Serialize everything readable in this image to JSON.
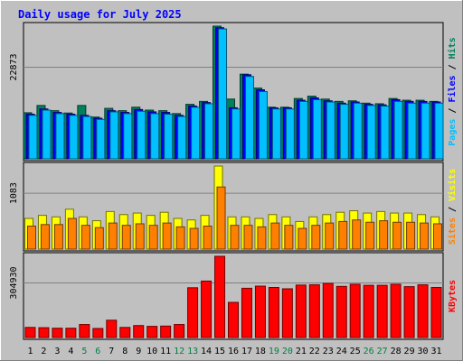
{
  "chart_data": {
    "type": "bar",
    "title": "Daily usage for July 2025",
    "colors": {
      "hits": "#00805c",
      "files": "#0000ff",
      "pages": "#00c0ff",
      "visits": "#ffff00",
      "sites": "#ff8000",
      "kbytes": "#ff0000",
      "background": "#c0c0c0",
      "title": "#0000ff",
      "weekend_label": "#008040",
      "weekday_label": "#000000"
    },
    "categories": [
      "1",
      "2",
      "3",
      "4",
      "5",
      "6",
      "7",
      "8",
      "9",
      "10",
      "11",
      "12",
      "13",
      "14",
      "15",
      "16",
      "17",
      "18",
      "19",
      "20",
      "21",
      "22",
      "23",
      "24",
      "25",
      "26",
      "27",
      "28",
      "29",
      "30",
      "31"
    ],
    "weekend_days": [
      "5",
      "6",
      "12",
      "13",
      "19",
      "20",
      "26",
      "27"
    ],
    "panels": [
      {
        "id": "traffic",
        "max_label": "22873",
        "ylim": [
          0,
          22873
        ],
        "right_labels": [
          {
            "text": "Pages",
            "color": "#00c0ff"
          },
          {
            "text": " / ",
            "color": "#000000"
          },
          {
            "text": "Files",
            "color": "#0000ff"
          },
          {
            "text": " / ",
            "color": "#000000"
          },
          {
            "text": "Hits",
            "color": "#00805c"
          }
        ],
        "series": [
          {
            "name": "Hits",
            "color": "#00805c",
            "values": [
              7950,
              9200,
              8300,
              7900,
              9200,
              7200,
              8700,
              8300,
              8900,
              8400,
              8300,
              7800,
              9400,
              9900,
              22873,
              10300,
              14600,
              12200,
              8900,
              8900,
              10400,
              10800,
              10300,
              9900,
              10000,
              9600,
              9500,
              10400,
              10100,
              10100,
              9900
            ]
          },
          {
            "name": "Files",
            "color": "#0000ff",
            "values": [
              7700,
              8600,
              8000,
              7700,
              7500,
              7000,
              8300,
              8000,
              8500,
              8100,
              8000,
              7500,
              9100,
              9700,
              22600,
              8800,
              14500,
              11900,
              8800,
              8800,
              10100,
              10500,
              10000,
              9600,
              9800,
              9400,
              9300,
              10200,
              9900,
              9900,
              9800
            ]
          },
          {
            "name": "Pages",
            "color": "#00c0ff",
            "values": [
              7500,
              8400,
              7800,
              7500,
              7300,
              6800,
              8100,
              7800,
              8200,
              7800,
              7700,
              7300,
              8900,
              9500,
              22400,
              8600,
              14200,
              11600,
              8600,
              8600,
              9900,
              10200,
              9800,
              9400,
              9600,
              9200,
              9100,
              9900,
              9600,
              9600,
              9600
            ]
          }
        ]
      },
      {
        "id": "visitors",
        "max_label": "1083",
        "ylim": [
          0,
          1083
        ],
        "right_labels": [
          {
            "text": "Sites",
            "color": "#ff8000"
          },
          {
            "text": " / ",
            "color": "#000000"
          },
          {
            "text": "Visits",
            "color": "#ffff00"
          }
        ],
        "series": [
          {
            "name": "Visits",
            "color": "#ffff00",
            "values": [
              400,
              440,
              420,
              520,
              420,
              370,
              490,
              450,
              470,
              440,
              480,
              400,
              380,
              440,
              1083,
              420,
              420,
              400,
              450,
              420,
              360,
              420,
              450,
              480,
              500,
              470,
              490,
              470,
              470,
              450,
              420
            ]
          },
          {
            "name": "Sites",
            "color": "#ff8000",
            "values": [
              300,
              320,
              320,
              400,
              310,
              280,
              340,
              310,
              330,
              310,
              340,
              290,
              270,
              300,
              810,
              310,
              310,
              290,
              340,
              310,
              270,
              310,
              340,
              360,
              380,
              350,
              370,
              350,
              350,
              340,
              330
            ]
          }
        ]
      },
      {
        "id": "kbytes",
        "max_label": "304930",
        "ylim": [
          0,
          304930
        ],
        "right_labels": [
          {
            "text": "KBytes",
            "color": "#ff0000"
          }
        ],
        "series": [
          {
            "name": "KBytes",
            "color": "#ff0000",
            "values": [
              38000,
              37000,
              35000,
              35000,
              49000,
              34000,
              65000,
              38000,
              45000,
              42000,
              43000,
              49000,
              187000,
              212000,
              304930,
              132000,
              185000,
              193000,
              188000,
              183000,
              197000,
              198000,
              203000,
              192000,
              200000,
              196000,
              196000,
              200000,
              191000,
              198000,
              188000
            ]
          }
        ]
      }
    ]
  }
}
